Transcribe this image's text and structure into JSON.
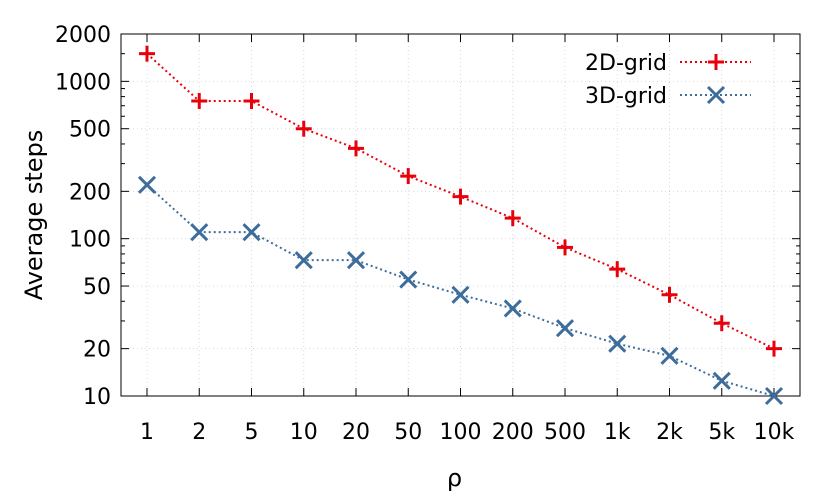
{
  "chart_data": {
    "type": "line",
    "title": "",
    "xlabel": "ρ",
    "ylabel": "Average steps",
    "categories": [
      "1",
      "2",
      "5",
      "10",
      "20",
      "50",
      "100",
      "200",
      "500",
      "1k",
      "2k",
      "5k",
      "10k"
    ],
    "y_scale": "log",
    "ylim": [
      10,
      2000
    ],
    "y_ticks": [
      10,
      20,
      50,
      100,
      200,
      500,
      1000,
      2000
    ],
    "grid": true,
    "legend_position": "top-right",
    "series": [
      {
        "name": "2D-grid",
        "marker": "plus",
        "color": "#e8000b",
        "values": [
          1500,
          750,
          750,
          500,
          375,
          250,
          185,
          135,
          88,
          64,
          44,
          29,
          20
        ]
      },
      {
        "name": "3D-grid",
        "marker": "cross",
        "color": "#3e6d9c",
        "values": [
          220,
          110,
          110,
          73,
          73,
          55,
          44,
          36,
          27,
          21.5,
          18,
          12.5,
          10
        ]
      }
    ]
  }
}
